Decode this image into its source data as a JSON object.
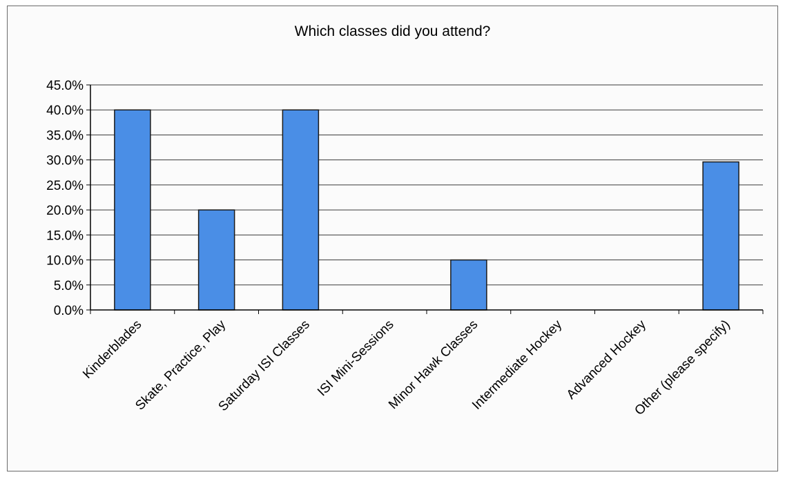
{
  "chart_data": {
    "type": "bar",
    "title": "Which classes did you attend?",
    "xlabel": "",
    "ylabel": "",
    "categories": [
      "Kinderblades",
      "Skate, Practice, Play",
      "Saturday ISI Classes",
      "ISI Mini-Sessions",
      "Minor Hawk Classes",
      "Intermediate Hockey",
      "Advanced Hockey",
      "Other (please specify)"
    ],
    "values": [
      40.0,
      20.0,
      40.0,
      0.0,
      10.0,
      0.0,
      0.0,
      29.6
    ],
    "ylim": [
      0,
      45
    ],
    "yticks": [
      "0.0%",
      "5.0%",
      "10.0%",
      "15.0%",
      "20.0%",
      "25.0%",
      "30.0%",
      "35.0%",
      "40.0%",
      "45.0%"
    ],
    "grid": true,
    "legend": "none",
    "bar_color": "#4a8ee6"
  }
}
